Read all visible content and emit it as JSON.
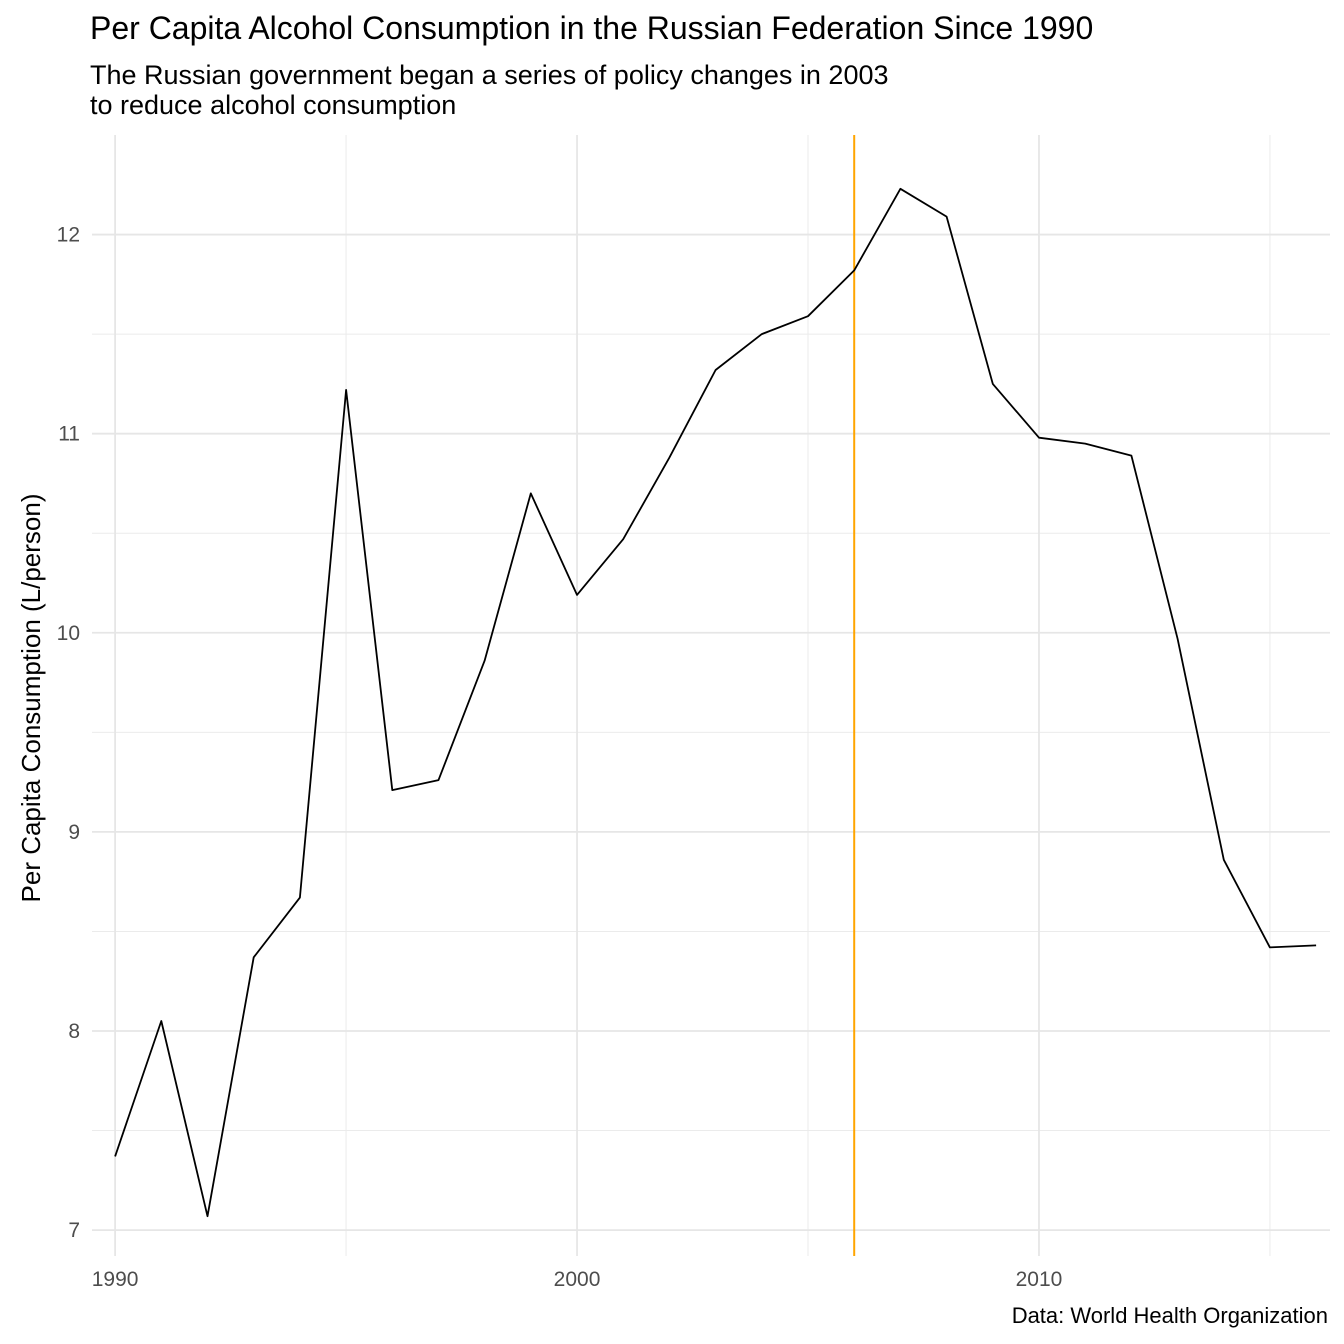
{
  "chart_data": {
    "type": "line",
    "title": "Per Capita Alcohol Consumption in the Russian Federation Since 1990",
    "subtitle": "The Russian government began a series of policy changes in 2003\nto reduce alcohol consumption",
    "caption": "Data: World Health Organization",
    "xlabel": "",
    "ylabel": "Per Capita Consumption (L/person)",
    "xlim": [
      1989.5,
      2016.3
    ],
    "ylim": [
      6.87,
      12.5
    ],
    "x_ticks": [
      1990,
      2000,
      2010
    ],
    "y_ticks": [
      7,
      8,
      9,
      10,
      11,
      12
    ],
    "grid": true,
    "reference_line": {
      "x": 2006,
      "color": "#FFA500"
    },
    "series": [
      {
        "color": "#000000",
        "x": [
          1990,
          1991,
          1992,
          1993,
          1994,
          1995,
          1996,
          1997,
          1998,
          1999,
          2000,
          2001,
          2002,
          2003,
          2004,
          2005,
          2006,
          2007,
          2008,
          2009,
          2010,
          2011,
          2012,
          2013,
          2014,
          2015,
          2016
        ],
        "values": [
          7.37,
          8.05,
          7.07,
          8.37,
          8.67,
          11.22,
          9.21,
          9.26,
          9.86,
          10.7,
          10.19,
          10.47,
          10.88,
          11.32,
          11.5,
          11.59,
          11.82,
          12.23,
          12.09,
          11.25,
          10.98,
          10.95,
          10.89,
          9.97,
          8.86,
          8.42,
          8.43
        ]
      }
    ]
  }
}
